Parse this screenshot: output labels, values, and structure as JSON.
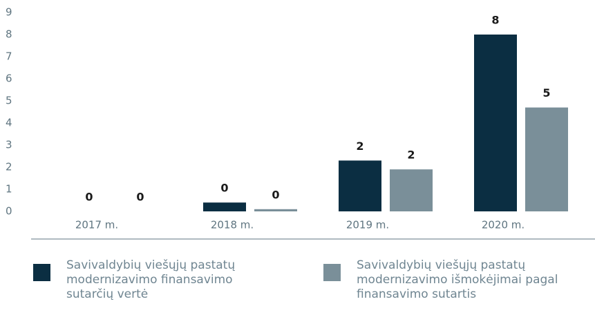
{
  "chart_data": {
    "type": "bar",
    "categories": [
      "2017 m.",
      "2018 m.",
      "2019 m.",
      "2020 m."
    ],
    "series": [
      {
        "name": "Savivaldybių viešųjų pastatų modernizavimo finansavimo sutarčių vertė",
        "color": "#0b2e42",
        "values": [
          0,
          0.4,
          2.3,
          8.0
        ],
        "value_labels": [
          "0",
          "0",
          "2",
          "8"
        ]
      },
      {
        "name": "Savivaldybių viešųjų pastatų modernizavimo išmokėjimai pagal finansavimo sutartis",
        "color": "#7a8f99",
        "values": [
          0,
          0.1,
          1.9,
          4.7
        ],
        "value_labels": [
          "0",
          "0",
          "2",
          "5"
        ]
      }
    ],
    "ylim": [
      0,
      9
    ],
    "yticks": [
      0,
      1,
      2,
      3,
      4,
      5,
      6,
      7,
      8,
      9
    ]
  }
}
